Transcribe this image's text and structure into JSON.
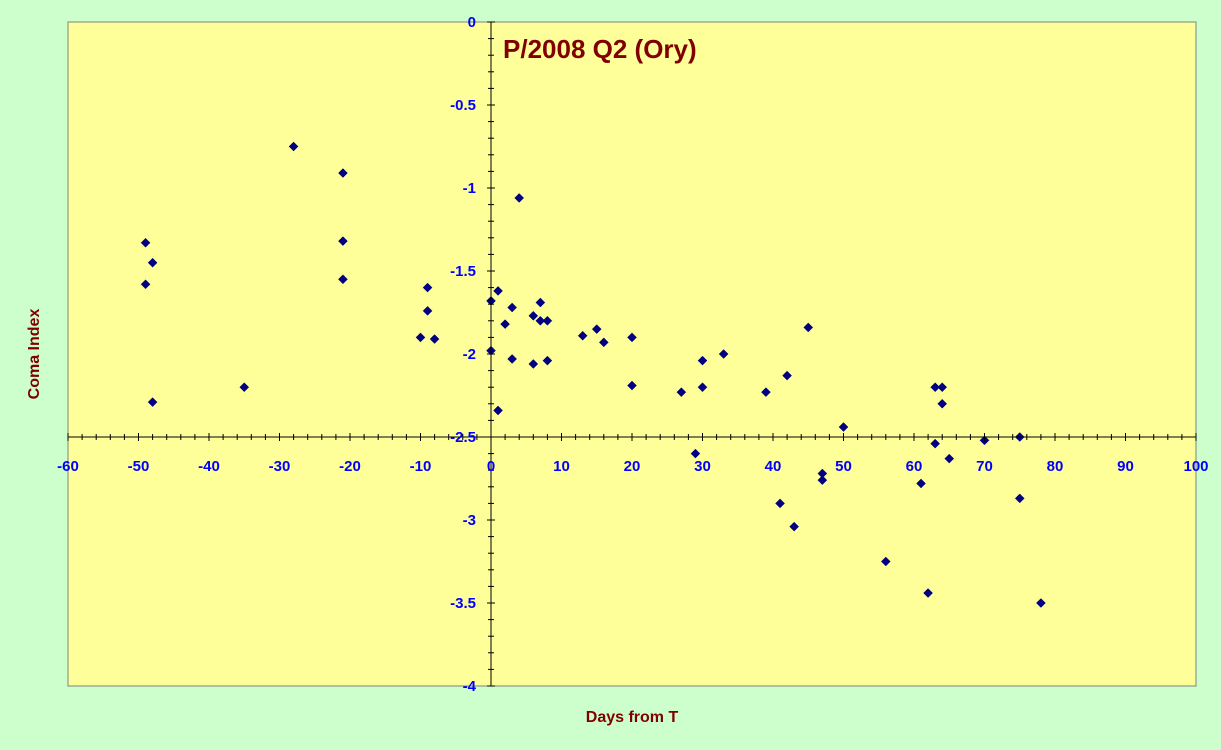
{
  "colors": {
    "background": "#ccffcc",
    "plot_area": "#ffff99",
    "marker": "#000080",
    "title": "#800000",
    "axis_label": "#800000",
    "tick_label": "#0000ff"
  },
  "chart_data": {
    "type": "scatter",
    "title": "P/2008 Q2 (Ory)",
    "xlabel": "Days from T",
    "ylabel": "Coma Index",
    "xlim": [
      -60,
      100
    ],
    "ylim": [
      -4,
      0
    ],
    "x_major_step": 10,
    "y_major_step": 0.5,
    "x_tick_labels": [
      "-60",
      "-50",
      "-40",
      "-30",
      "-20",
      "-10",
      "0",
      "10",
      "20",
      "30",
      "40",
      "50",
      "60",
      "70",
      "80",
      "90",
      "100"
    ],
    "y_tick_labels": [
      "0",
      "-0.5",
      "-1",
      "-1.5",
      "-2",
      "-2.5",
      "-3",
      "-3.5",
      "-4"
    ],
    "x_axis_crosses_y": -2.5,
    "y_axis_crosses_x": 0,
    "grid": false,
    "legend": "none",
    "marker": "diamond",
    "points": [
      [
        -49,
        -1.33
      ],
      [
        -49,
        -1.58
      ],
      [
        -48,
        -1.45
      ],
      [
        -48,
        -2.29
      ],
      [
        -35,
        -2.2
      ],
      [
        -28,
        -0.75
      ],
      [
        -21,
        -0.91
      ],
      [
        -21,
        -1.32
      ],
      [
        -21,
        -1.55
      ],
      [
        -10,
        -1.9
      ],
      [
        -9,
        -1.6
      ],
      [
        -9,
        -1.74
      ],
      [
        -8,
        -1.91
      ],
      [
        0,
        -1.68
      ],
      [
        0,
        -1.98
      ],
      [
        1,
        -1.62
      ],
      [
        1,
        -2.34
      ],
      [
        2,
        -1.82
      ],
      [
        3,
        -1.72
      ],
      [
        3,
        -2.03
      ],
      [
        4,
        -1.06
      ],
      [
        6,
        -1.77
      ],
      [
        6,
        -2.06
      ],
      [
        7,
        -1.69
      ],
      [
        7,
        -1.8
      ],
      [
        8,
        -1.8
      ],
      [
        8,
        -2.04
      ],
      [
        13,
        -1.89
      ],
      [
        15,
        -1.85
      ],
      [
        16,
        -1.93
      ],
      [
        20,
        -1.9
      ],
      [
        20,
        -2.19
      ],
      [
        27,
        -2.23
      ],
      [
        29,
        -2.6
      ],
      [
        30,
        -2.04
      ],
      [
        30,
        -2.2
      ],
      [
        33,
        -2.0
      ],
      [
        39,
        -2.23
      ],
      [
        41,
        -2.9
      ],
      [
        42,
        -2.13
      ],
      [
        43,
        -3.04
      ],
      [
        45,
        -1.84
      ],
      [
        47,
        -2.72
      ],
      [
        47,
        -2.76
      ],
      [
        50,
        -2.44
      ],
      [
        56,
        -3.25
      ],
      [
        61,
        -2.78
      ],
      [
        62,
        -3.44
      ],
      [
        63,
        -2.2
      ],
      [
        63,
        -2.54
      ],
      [
        64,
        -2.2
      ],
      [
        64,
        -2.3
      ],
      [
        65,
        -2.63
      ],
      [
        70,
        -2.52
      ],
      [
        75,
        -2.5
      ],
      [
        75,
        -2.87
      ],
      [
        78,
        -3.5
      ]
    ]
  }
}
